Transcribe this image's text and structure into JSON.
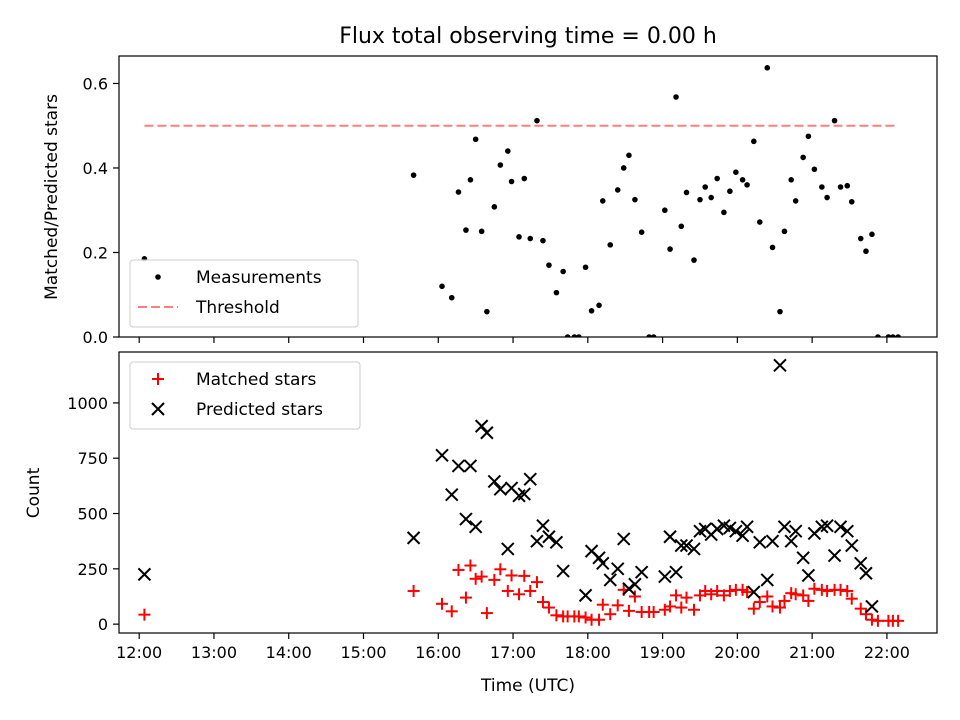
{
  "figure": {
    "title": "Flux total observing time = 0.00 h"
  },
  "chart_data": [
    {
      "type": "scatter",
      "title": "Flux total observing time = 0.00 h",
      "ylabel": "Matched/Predicted stars",
      "xlabel": "",
      "xlim": [
        11.73,
        22.67
      ],
      "ylim": [
        0,
        0.665
      ],
      "x_ticks": [
        "12:00",
        "13:00",
        "14:00",
        "15:00",
        "16:00",
        "17:00",
        "18:00",
        "19:00",
        "20:00",
        "21:00",
        "22:00"
      ],
      "y_ticks": [
        0.0,
        0.2,
        0.4,
        0.6
      ],
      "y_tick_labels": [
        "0.0",
        "0.2",
        "0.4",
        "0.6"
      ],
      "legend_position": "lower-left",
      "series": [
        {
          "name": "Measurements",
          "kind": "scatter",
          "marker": "dot",
          "color": "#000000",
          "points": [
            [
              12.07,
              0.185
            ],
            [
              15.67,
              0.383
            ],
            [
              16.05,
              0.12
            ],
            [
              16.18,
              0.093
            ],
            [
              16.27,
              0.343
            ],
            [
              16.37,
              0.253
            ],
            [
              16.43,
              0.372
            ],
            [
              16.5,
              0.468
            ],
            [
              16.58,
              0.25
            ],
            [
              16.65,
              0.06
            ],
            [
              16.75,
              0.308
            ],
            [
              16.83,
              0.407
            ],
            [
              16.93,
              0.44
            ],
            [
              16.98,
              0.368
            ],
            [
              17.08,
              0.237
            ],
            [
              17.15,
              0.375
            ],
            [
              17.23,
              0.233
            ],
            [
              17.32,
              0.512
            ],
            [
              17.4,
              0.228
            ],
            [
              17.48,
              0.17
            ],
            [
              17.58,
              0.105
            ],
            [
              17.67,
              0.155
            ],
            [
              17.73,
              0.0
            ],
            [
              17.82,
              0.0
            ],
            [
              17.88,
              0.0
            ],
            [
              17.97,
              0.165
            ],
            [
              18.05,
              0.062
            ],
            [
              18.15,
              0.075
            ],
            [
              18.2,
              0.322
            ],
            [
              18.3,
              0.218
            ],
            [
              18.4,
              0.348
            ],
            [
              18.48,
              0.4
            ],
            [
              18.55,
              0.43
            ],
            [
              18.63,
              0.325
            ],
            [
              18.72,
              0.248
            ],
            [
              18.82,
              0.0
            ],
            [
              18.88,
              0.0
            ],
            [
              19.03,
              0.3
            ],
            [
              19.1,
              0.208
            ],
            [
              19.18,
              0.568
            ],
            [
              19.25,
              0.262
            ],
            [
              19.32,
              0.342
            ],
            [
              19.42,
              0.182
            ],
            [
              19.5,
              0.325
            ],
            [
              19.57,
              0.355
            ],
            [
              19.65,
              0.33
            ],
            [
              19.73,
              0.375
            ],
            [
              19.82,
              0.295
            ],
            [
              19.9,
              0.345
            ],
            [
              19.98,
              0.39
            ],
            [
              20.07,
              0.372
            ],
            [
              20.13,
              0.36
            ],
            [
              20.22,
              0.463
            ],
            [
              20.3,
              0.272
            ],
            [
              20.4,
              0.637
            ],
            [
              20.47,
              0.212
            ],
            [
              20.57,
              0.06
            ],
            [
              20.63,
              0.25
            ],
            [
              20.72,
              0.372
            ],
            [
              20.78,
              0.322
            ],
            [
              20.88,
              0.425
            ],
            [
              20.95,
              0.475
            ],
            [
              21.03,
              0.397
            ],
            [
              21.13,
              0.355
            ],
            [
              21.2,
              0.33
            ],
            [
              21.3,
              0.512
            ],
            [
              21.38,
              0.355
            ],
            [
              21.47,
              0.358
            ],
            [
              21.53,
              0.32
            ],
            [
              21.65,
              0.233
            ],
            [
              21.72,
              0.203
            ],
            [
              21.8,
              0.243
            ],
            [
              21.88,
              0.0
            ],
            [
              22.02,
              0.0
            ],
            [
              22.08,
              0.0
            ],
            [
              22.15,
              0.0
            ]
          ]
        },
        {
          "name": "Threshold",
          "kind": "line",
          "style": "dashed",
          "color": "#ff7f7f",
          "points": [
            [
              12.07,
              0.5
            ],
            [
              22.15,
              0.5
            ]
          ]
        }
      ]
    },
    {
      "type": "scatter",
      "title": "",
      "ylabel": "Count",
      "xlabel": "Time (UTC)",
      "xlim": [
        11.73,
        22.67
      ],
      "ylim": [
        -40,
        1230
      ],
      "x_ticks": [
        "12:00",
        "13:00",
        "14:00",
        "15:00",
        "16:00",
        "17:00",
        "18:00",
        "19:00",
        "20:00",
        "21:00",
        "22:00"
      ],
      "y_ticks": [
        0,
        250,
        500,
        750,
        1000
      ],
      "y_tick_labels": [
        "0",
        "250",
        "500",
        "750",
        "1000"
      ],
      "legend_position": "upper-left",
      "series": [
        {
          "name": "Matched stars",
          "kind": "scatter",
          "marker": "plus",
          "color": "#ff0000",
          "points": [
            [
              12.07,
              43
            ],
            [
              15.67,
              150
            ],
            [
              16.05,
              92
            ],
            [
              16.18,
              58
            ],
            [
              16.27,
              245
            ],
            [
              16.37,
              120
            ],
            [
              16.43,
              265
            ],
            [
              16.5,
              205
            ],
            [
              16.58,
              215
            ],
            [
              16.65,
              50
            ],
            [
              16.75,
              200
            ],
            [
              16.83,
              248
            ],
            [
              16.93,
              150
            ],
            [
              16.98,
              220
            ],
            [
              17.08,
              135
            ],
            [
              17.15,
              218
            ],
            [
              17.23,
              150
            ],
            [
              17.32,
              190
            ],
            [
              17.4,
              100
            ],
            [
              17.48,
              75
            ],
            [
              17.58,
              40
            ],
            [
              17.67,
              35
            ],
            [
              17.73,
              35
            ],
            [
              17.82,
              35
            ],
            [
              17.88,
              35
            ],
            [
              17.97,
              30
            ],
            [
              18.05,
              20
            ],
            [
              18.15,
              20
            ],
            [
              18.2,
              88
            ],
            [
              18.3,
              45
            ],
            [
              18.4,
              85
            ],
            [
              18.48,
              155
            ],
            [
              18.55,
              60
            ],
            [
              18.63,
              125
            ],
            [
              18.72,
              55
            ],
            [
              18.82,
              55
            ],
            [
              18.88,
              55
            ],
            [
              19.03,
              65
            ],
            [
              19.1,
              80
            ],
            [
              19.18,
              130
            ],
            [
              19.25,
              75
            ],
            [
              19.32,
              120
            ],
            [
              19.42,
              65
            ],
            [
              19.5,
              130
            ],
            [
              19.57,
              150
            ],
            [
              19.65,
              135
            ],
            [
              19.73,
              150
            ],
            [
              19.82,
              130
            ],
            [
              19.9,
              150
            ],
            [
              19.98,
              155
            ],
            [
              20.07,
              155
            ],
            [
              20.13,
              145
            ],
            [
              20.22,
              70
            ],
            [
              20.3,
              100
            ],
            [
              20.4,
              125
            ],
            [
              20.47,
              80
            ],
            [
              20.57,
              75
            ],
            [
              20.63,
              105
            ],
            [
              20.72,
              140
            ],
            [
              20.78,
              135
            ],
            [
              20.88,
              130
            ],
            [
              20.95,
              105
            ],
            [
              21.03,
              160
            ],
            [
              21.13,
              155
            ],
            [
              21.2,
              150
            ],
            [
              21.3,
              155
            ],
            [
              21.38,
              155
            ],
            [
              21.47,
              150
            ],
            [
              21.53,
              115
            ],
            [
              21.65,
              70
            ],
            [
              21.72,
              45
            ],
            [
              21.8,
              20
            ],
            [
              21.88,
              15
            ],
            [
              22.02,
              15
            ],
            [
              22.08,
              15
            ],
            [
              22.15,
              15
            ]
          ]
        },
        {
          "name": "Predicted stars",
          "kind": "scatter",
          "marker": "x",
          "color": "#000000",
          "points": [
            [
              12.07,
              225
            ],
            [
              15.67,
              390
            ],
            [
              16.05,
              763
            ],
            [
              16.18,
              585
            ],
            [
              16.27,
              715
            ],
            [
              16.37,
              475
            ],
            [
              16.43,
              715
            ],
            [
              16.5,
              440
            ],
            [
              16.58,
              895
            ],
            [
              16.65,
              865
            ],
            [
              16.75,
              645
            ],
            [
              16.83,
              610
            ],
            [
              16.93,
              340
            ],
            [
              16.98,
              615
            ],
            [
              17.08,
              580
            ],
            [
              17.15,
              588
            ],
            [
              17.23,
              655
            ],
            [
              17.32,
              375
            ],
            [
              17.4,
              445
            ],
            [
              17.48,
              395
            ],
            [
              17.58,
              370
            ],
            [
              17.67,
              240
            ],
            [
              17.97,
              130
            ],
            [
              18.05,
              330
            ],
            [
              18.15,
              300
            ],
            [
              18.2,
              275
            ],
            [
              18.3,
              200
            ],
            [
              18.4,
              250
            ],
            [
              18.48,
              385
            ],
            [
              18.55,
              160
            ],
            [
              18.63,
              180
            ],
            [
              18.72,
              235
            ],
            [
              19.03,
              215
            ],
            [
              19.1,
              395
            ],
            [
              19.18,
              235
            ],
            [
              19.25,
              355
            ],
            [
              19.32,
              355
            ],
            [
              19.42,
              340
            ],
            [
              19.5,
              420
            ],
            [
              19.57,
              430
            ],
            [
              19.65,
              405
            ],
            [
              19.73,
              430
            ],
            [
              19.82,
              445
            ],
            [
              19.9,
              435
            ],
            [
              19.98,
              420
            ],
            [
              20.07,
              400
            ],
            [
              20.13,
              440
            ],
            [
              20.22,
              145
            ],
            [
              20.3,
              370
            ],
            [
              20.4,
              200
            ],
            [
              20.47,
              375
            ],
            [
              20.57,
              1170
            ],
            [
              20.63,
              440
            ],
            [
              20.72,
              375
            ],
            [
              20.78,
              420
            ],
            [
              20.88,
              300
            ],
            [
              20.95,
              220
            ],
            [
              21.03,
              410
            ],
            [
              21.13,
              440
            ],
            [
              21.2,
              445
            ],
            [
              21.3,
              310
            ],
            [
              21.38,
              440
            ],
            [
              21.47,
              420
            ],
            [
              21.53,
              355
            ],
            [
              21.65,
              275
            ],
            [
              21.72,
              230
            ],
            [
              21.8,
              80
            ]
          ]
        }
      ]
    }
  ]
}
